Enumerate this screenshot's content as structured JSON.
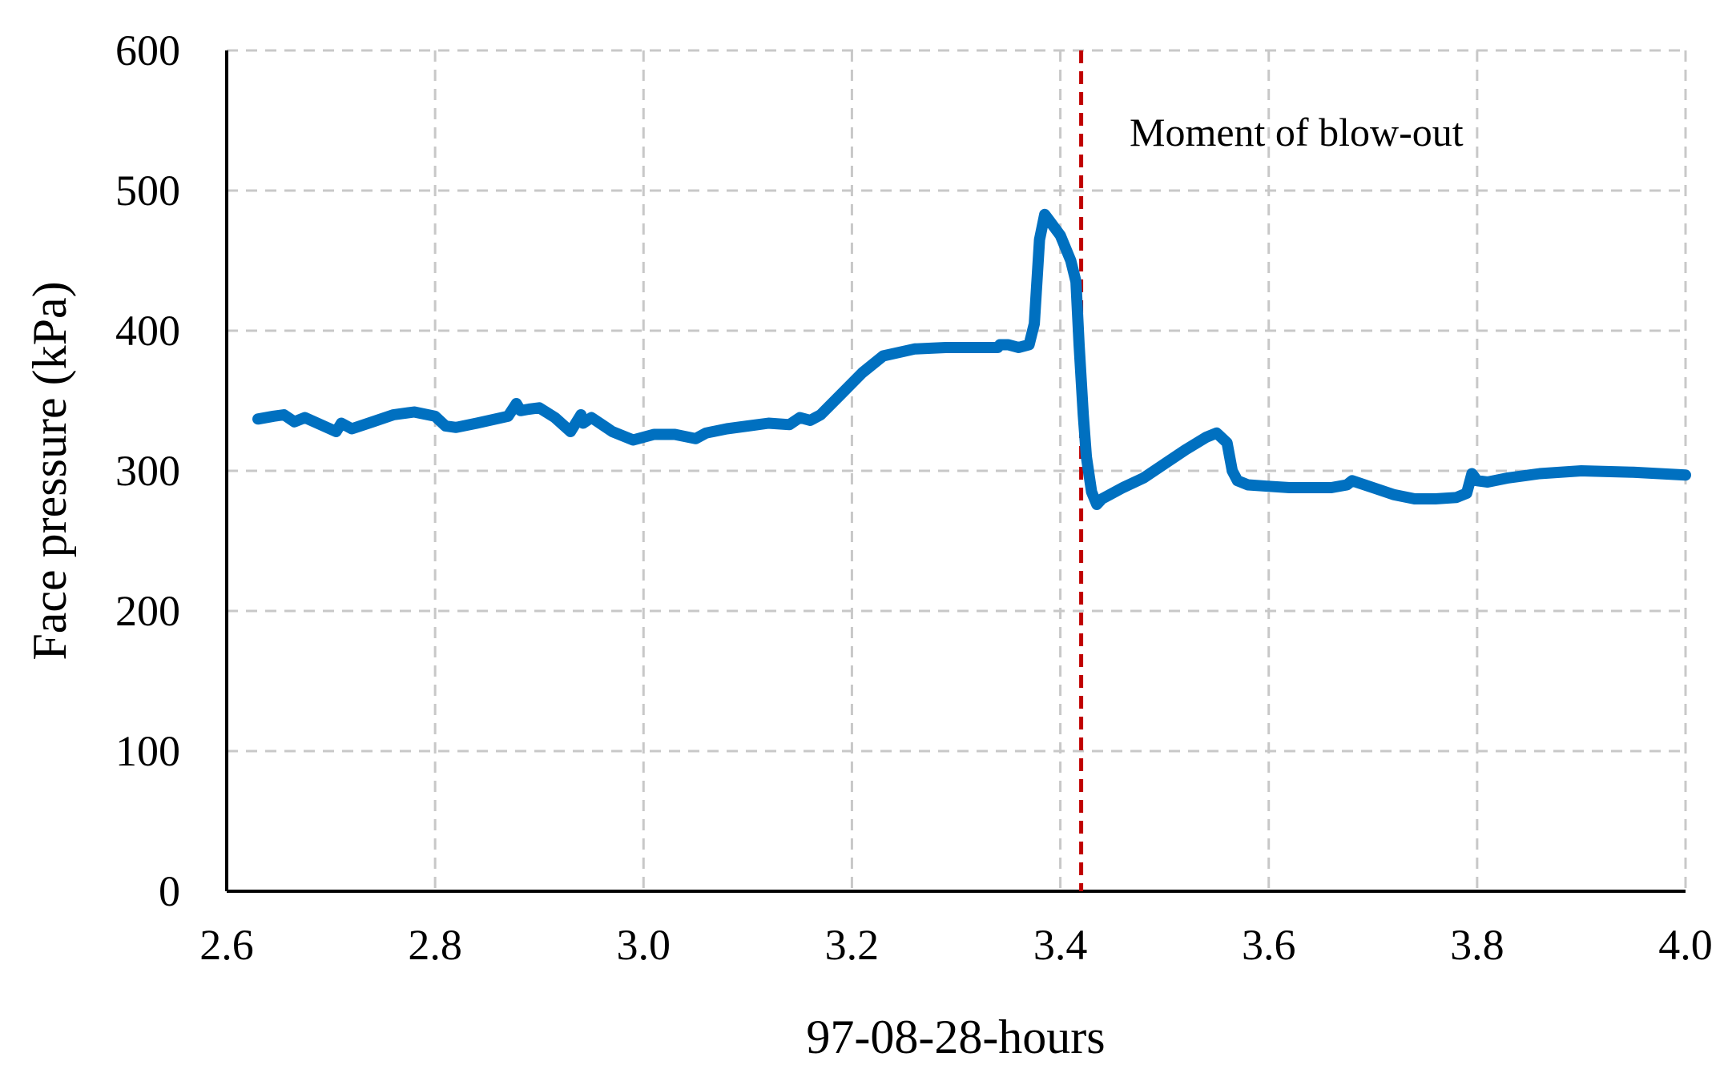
{
  "chart_data": {
    "type": "line",
    "xlabel": "97-08-28-hours",
    "ylabel": "Face pressure (kPa)",
    "xlim": [
      2.6,
      4.0
    ],
    "ylim": [
      0,
      600
    ],
    "xticks": [
      2.6,
      2.8,
      3.0,
      3.2,
      3.4,
      3.6,
      3.8,
      4.0
    ],
    "xtick_labels": [
      "2.6",
      "2.8",
      "3.0",
      "3.2",
      "3.4",
      "3.6",
      "3.8",
      "4.0"
    ],
    "yticks": [
      0,
      100,
      200,
      300,
      400,
      500,
      600
    ],
    "ytick_labels": [
      "0",
      "100",
      "200",
      "300",
      "400",
      "500",
      "600"
    ],
    "grid": true,
    "line_color": "#0070c0",
    "marker_color": "#c00000",
    "annotation": {
      "text": "Moment of blow-out",
      "x": 3.42
    },
    "series": [
      {
        "x": [
          2.63,
          2.645,
          2.655,
          2.665,
          2.675,
          2.69,
          2.705,
          2.71,
          2.72,
          2.74,
          2.76,
          2.78,
          2.8,
          2.81,
          2.82,
          2.84,
          2.87,
          2.878,
          2.882,
          2.89,
          2.9,
          2.915,
          2.93,
          2.94,
          2.942,
          2.95,
          2.97,
          2.99,
          3.01,
          3.03,
          3.05,
          3.055,
          3.06,
          3.08,
          3.1,
          3.12,
          3.14,
          3.15,
          3.16,
          3.17,
          3.19,
          3.21,
          3.23,
          3.26,
          3.29,
          3.32,
          3.34,
          3.342,
          3.35,
          3.36,
          3.37,
          3.375,
          3.38,
          3.385,
          3.39,
          3.4,
          3.41,
          3.415,
          3.418,
          3.422,
          3.425,
          3.43,
          3.435,
          3.44,
          3.46,
          3.48,
          3.5,
          3.52,
          3.54,
          3.55,
          3.56,
          3.565,
          3.57,
          3.58,
          3.6,
          3.62,
          3.64,
          3.66,
          3.675,
          3.68,
          3.7,
          3.72,
          3.74,
          3.76,
          3.78,
          3.79,
          3.795,
          3.8,
          3.81,
          3.83,
          3.86,
          3.9,
          3.95,
          4.0
        ],
        "y": [
          337,
          339,
          340,
          335,
          338,
          333,
          328,
          334,
          330,
          335,
          340,
          342,
          339,
          332,
          331,
          334,
          339,
          348,
          343,
          344,
          345,
          338,
          328,
          340,
          334,
          338,
          328,
          322,
          326,
          326,
          323,
          325,
          327,
          330,
          332,
          334,
          333,
          338,
          336,
          340,
          355,
          370,
          382,
          387,
          388,
          388,
          388,
          390,
          390,
          388,
          390,
          405,
          465,
          483,
          478,
          468,
          450,
          435,
          390,
          340,
          310,
          285,
          276,
          280,
          288,
          295,
          305,
          315,
          324,
          327,
          320,
          300,
          293,
          290,
          289,
          288,
          288,
          288,
          290,
          293,
          288,
          283,
          280,
          280,
          281,
          284,
          298,
          293,
          292,
          295,
          298,
          300,
          299,
          297
        ]
      }
    ]
  }
}
